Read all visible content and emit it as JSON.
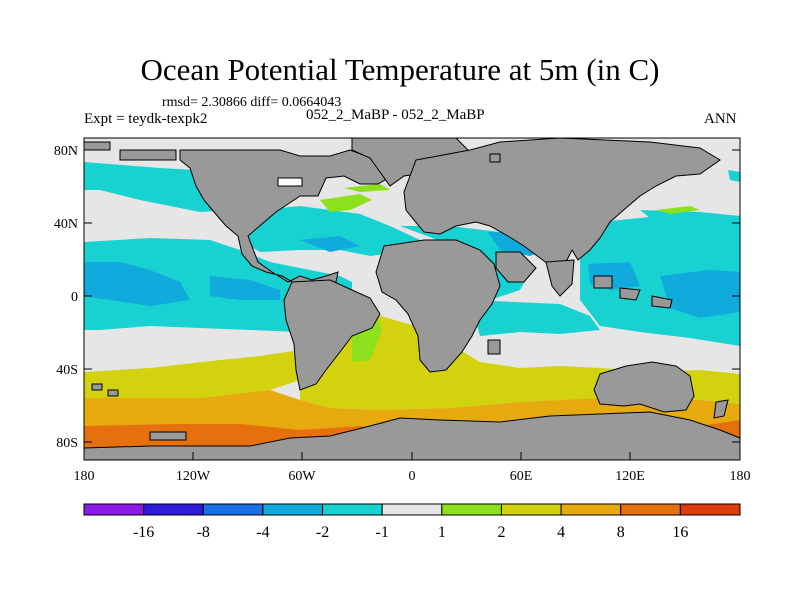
{
  "title": "Ocean Potential Temperature at 5m (in C)",
  "stats": "rmsd= 2.30866 diff= 0.0664043",
  "expt": "Expt = teydk-texpk2",
  "cases": "052_2_MaBP - 052_2_MaBP",
  "season": "ANN",
  "lat_labels": [
    "80N",
    "40N",
    "0",
    "40S",
    "80S"
  ],
  "lon_labels": [
    "180",
    "120W",
    "60W",
    "0",
    "60E",
    "120E",
    "180"
  ],
  "colorbar": {
    "labels": [
      "-16",
      "-8",
      "-4",
      "-2",
      "-1",
      "1",
      "2",
      "4",
      "8",
      "16"
    ],
    "colors": [
      "#8c1ae6",
      "#2e1adc",
      "#1a6ee6",
      "#11aadc",
      "#18d2d2",
      "#e6e6e6",
      "#8ce01c",
      "#d2d20e",
      "#e6aa0e",
      "#e6700e",
      "#dc3c0a"
    ]
  },
  "colors": {
    "land": "#999999",
    "coast": "#000000"
  }
}
